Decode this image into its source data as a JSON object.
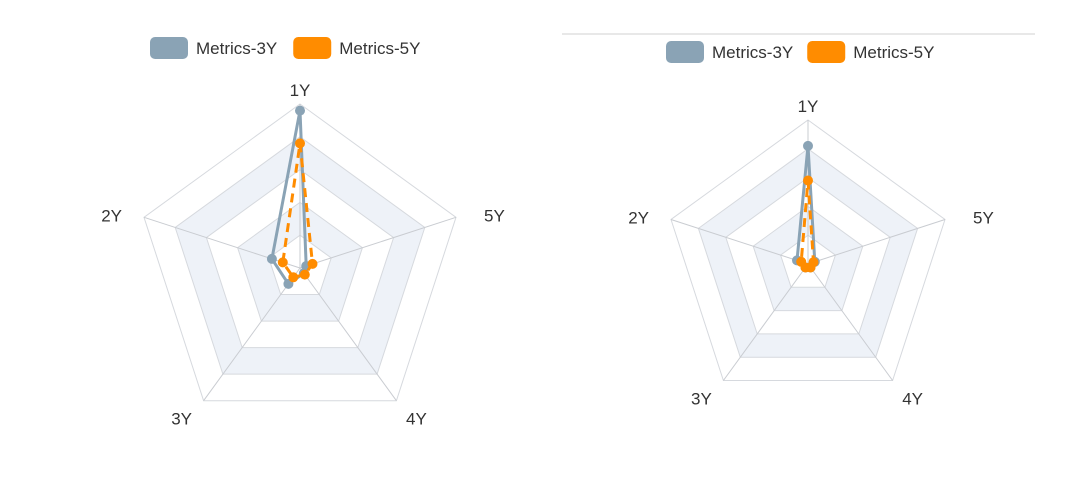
{
  "colors": {
    "series_3y": "#8aa3b5",
    "series_5y": "#ff8c00",
    "grid": "#d6d9de",
    "band": "#eef2f8",
    "axis": "#c9ccd1",
    "text": "#333333",
    "divider": "#d0d0d0"
  },
  "chart_data": [
    {
      "type": "radar",
      "indicators": [
        "1Y",
        "5Y",
        "4Y",
        "3Y",
        "2Y"
      ],
      "max": 1,
      "split_number": 5,
      "legend": {
        "position": "top-center",
        "items": [
          "Metrics-3Y",
          "Metrics-5Y"
        ]
      },
      "series": [
        {
          "name": "Metrics-3Y",
          "line": "solid",
          "values": [
            0.96,
            0.04,
            0.04,
            0.12,
            0.18
          ]
        },
        {
          "name": "Metrics-5Y",
          "line": "dashed",
          "values": [
            0.76,
            0.08,
            0.05,
            0.07,
            0.11
          ]
        }
      ]
    },
    {
      "type": "radar",
      "indicators": [
        "1Y",
        "5Y",
        "4Y",
        "3Y",
        "2Y"
      ],
      "max": 1,
      "split_number": 5,
      "legend": {
        "position": "top-center",
        "items": [
          "Metrics-3Y",
          "Metrics-5Y"
        ]
      },
      "series": [
        {
          "name": "Metrics-3Y",
          "line": "solid",
          "values": [
            0.82,
            0.05,
            0.03,
            0.03,
            0.08
          ]
        },
        {
          "name": "Metrics-5Y",
          "line": "dashed",
          "values": [
            0.58,
            0.04,
            0.03,
            0.03,
            0.05
          ]
        }
      ]
    }
  ]
}
